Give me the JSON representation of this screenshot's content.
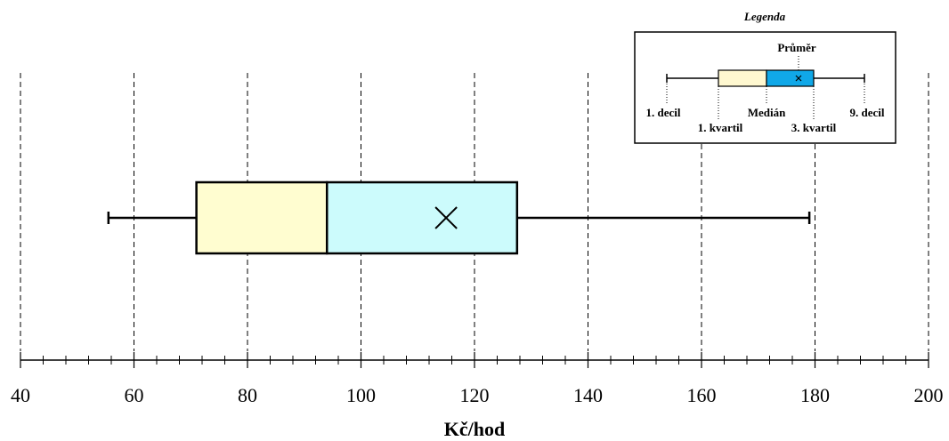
{
  "chart_data": {
    "type": "boxplot",
    "xlabel": "Kč/hod",
    "xlim": [
      40,
      200
    ],
    "x_ticks": [
      40,
      60,
      80,
      100,
      120,
      140,
      160,
      180,
      200
    ],
    "x_tick_labels": [
      "40",
      "60",
      "80",
      "100",
      "120",
      "140",
      "160",
      "180",
      "200"
    ],
    "minor_tick_step": 4,
    "grid": "vertical dashed",
    "box": {
      "decile_1": 55.5,
      "quartile_1": 71,
      "median": 94,
      "mean": 115,
      "quartile_3": 127.5,
      "decile_9": 179
    },
    "colors": {
      "lower_box": "#fffdd0",
      "upper_box": "#ccfbfc",
      "legend_lower_box": "#fff8d0",
      "legend_upper_box": "#10a8e8"
    },
    "legend": {
      "placement": "top-right",
      "title": "Legenda",
      "mean_label": "Průměr",
      "decile1_label": "1. decil",
      "quartile1_label": "1. kvartil",
      "median_label": "Medián",
      "quartile3_label": "3. kvartil",
      "decile9_label": "9. decil"
    }
  }
}
